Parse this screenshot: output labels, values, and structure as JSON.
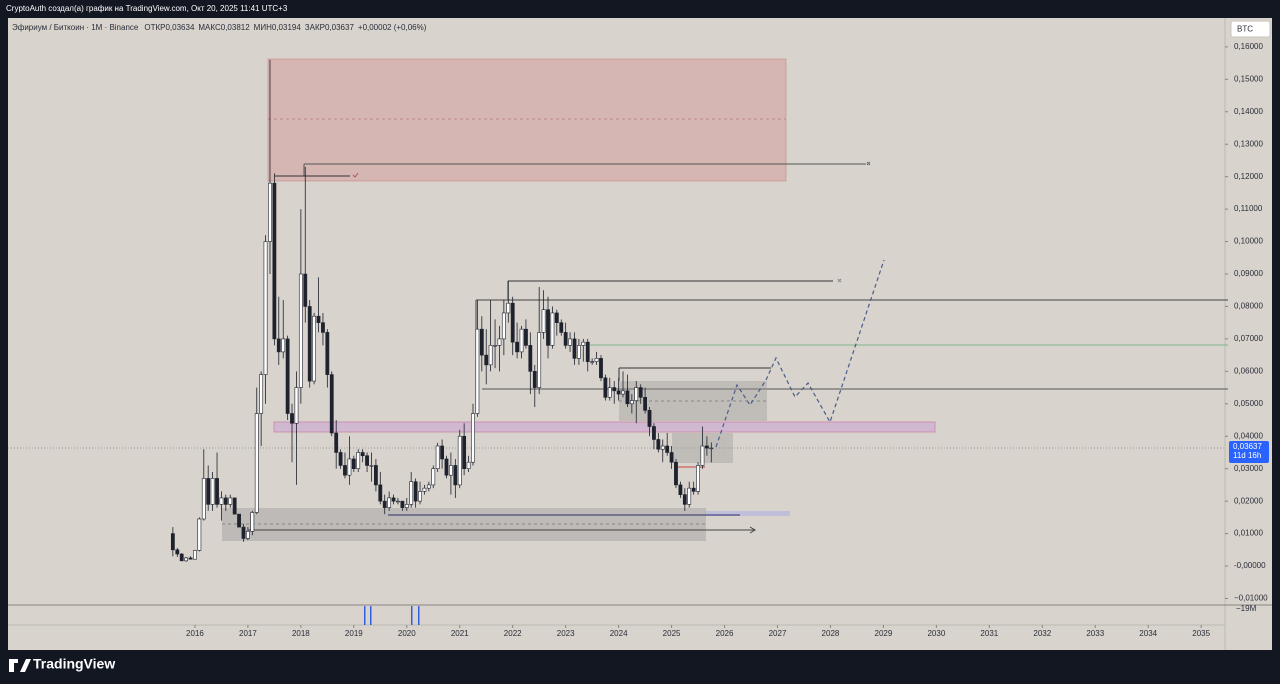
{
  "header": {
    "author_line": "CryptoAuth создал(а) график на TradingView.com, Окт 20, 2025 11:41 UTC+3",
    "brand": "TradingView"
  },
  "chart_data": {
    "type": "candlestick",
    "title": "Эфириум / Биткоин · 1М · Binance",
    "ohlc": [
      {
        "label": "ОТКР",
        "value": "0,03634"
      },
      {
        "label": "МАКС",
        "value": "0,03812"
      },
      {
        "label": "МИН",
        "value": "0,03194"
      },
      {
        "label": "ЗАКР",
        "value": "0,03637"
      }
    ],
    "change": "+0,00002 (+0,06%)",
    "currency": "BTC",
    "last_price": {
      "value": 0.03637,
      "label": "0,03637"
    },
    "countdown": "11d 16h",
    "volume_label": "−19M",
    "x": [
      2015.583,
      2015.667,
      2015.75,
      2015.833,
      2015.917,
      2016,
      2016.083,
      2016.167,
      2016.25,
      2016.333,
      2016.417,
      2016.5,
      2016.583,
      2016.667,
      2016.75,
      2016.833,
      2016.917,
      2017,
      2017.083,
      2017.167,
      2017.25,
      2017.333,
      2017.417,
      2017.5,
      2017.583,
      2017.667,
      2017.75,
      2017.833,
      2017.917,
      2018,
      2018.083,
      2018.167,
      2018.25,
      2018.333,
      2018.417,
      2018.5,
      2018.583,
      2018.667,
      2018.75,
      2018.833,
      2018.917,
      2019,
      2019.083,
      2019.167,
      2019.25,
      2019.333,
      2019.417,
      2019.5,
      2019.583,
      2019.667,
      2019.75,
      2019.833,
      2019.917,
      2020,
      2020.083,
      2020.167,
      2020.25,
      2020.333,
      2020.417,
      2020.5,
      2020.583,
      2020.667,
      2020.75,
      2020.833,
      2020.917,
      2021,
      2021.083,
      2021.167,
      2021.25,
      2021.333,
      2021.417,
      2021.5,
      2021.583,
      2021.667,
      2021.75,
      2021.833,
      2021.917,
      2022,
      2022.083,
      2022.167,
      2022.25,
      2022.333,
      2022.417,
      2022.5,
      2022.583,
      2022.667,
      2022.75,
      2022.833,
      2022.917,
      2023,
      2023.083,
      2023.167,
      2023.25,
      2023.333,
      2023.417,
      2023.5,
      2023.583,
      2023.667,
      2023.75,
      2023.833,
      2023.917,
      2024,
      2024.083,
      2024.167,
      2024.25,
      2024.333,
      2024.417,
      2024.5,
      2024.583,
      2024.667,
      2024.75,
      2024.833,
      2024.917,
      2025,
      2025.083,
      2025.167,
      2025.25,
      2025.333,
      2025.417,
      2025.5,
      2025.583,
      2025.667,
      2025.75
    ],
    "open": [
      0.01,
      0.005,
      0.0037,
      0.0016,
      0.0025,
      0.0021,
      0.0048,
      0.0145,
      0.027,
      0.019,
      0.027,
      0.019,
      0.021,
      0.019,
      0.021,
      0.016,
      0.012,
      0.0085,
      0.0107,
      0.0165,
      0.047,
      0.059,
      0.1,
      0.118,
      0.07,
      0.066,
      0.07,
      0.047,
      0.044,
      0.055,
      0.09,
      0.08,
      0.057,
      0.077,
      0.075,
      0.072,
      0.059,
      0.041,
      0.035,
      0.031,
      0.028,
      0.033,
      0.03,
      0.035,
      0.034,
      0.031,
      0.031,
      0.025,
      0.02,
      0.018,
      0.021,
      0.02,
      0.02,
      0.018,
      0.019,
      0.026,
      0.02,
      0.023,
      0.024,
      0.025,
      0.03,
      0.037,
      0.033,
      0.028,
      0.031,
      0.025,
      0.04,
      0.03,
      0.032,
      0.047,
      0.073,
      0.065,
      0.062,
      0.068,
      0.068,
      0.07,
      0.078,
      0.081,
      0.069,
      0.066,
      0.073,
      0.068,
      0.06,
      0.055,
      0.072,
      0.079,
      0.068,
      0.078,
      0.075,
      0.072,
      0.068,
      0.07,
      0.064,
      0.068,
      0.069,
      0.063,
      0.063,
      0.064,
      0.058,
      0.052,
      0.055,
      0.054,
      0.053,
      0.054,
      0.05,
      0.051,
      0.055,
      0.052,
      0.048,
      0.043,
      0.039,
      0.036,
      0.037,
      0.035,
      0.032,
      0.025,
      0.022,
      0.019,
      0.024,
      0.023,
      0.031,
      0.037,
      0.03634
    ],
    "high": [
      0.012,
      0.0056,
      0.004,
      0.0028,
      0.003,
      0.005,
      0.015,
      0.036,
      0.031,
      0.029,
      0.035,
      0.023,
      0.022,
      0.022,
      0.021,
      0.016,
      0.013,
      0.012,
      0.017,
      0.055,
      0.06,
      0.102,
      0.156,
      0.121,
      0.083,
      0.082,
      0.071,
      0.05,
      0.06,
      0.11,
      0.123,
      0.082,
      0.078,
      0.089,
      0.078,
      0.073,
      0.06,
      0.045,
      0.036,
      0.035,
      0.04,
      0.034,
      0.036,
      0.036,
      0.035,
      0.035,
      0.033,
      0.029,
      0.022,
      0.023,
      0.022,
      0.021,
      0.02,
      0.021,
      0.029,
      0.027,
      0.026,
      0.025,
      0.026,
      0.031,
      0.038,
      0.039,
      0.034,
      0.035,
      0.033,
      0.042,
      0.044,
      0.034,
      0.05,
      0.082,
      0.077,
      0.073,
      0.082,
      0.076,
      0.074,
      0.082,
      0.088,
      0.083,
      0.075,
      0.074,
      0.076,
      0.072,
      0.062,
      0.086,
      0.085,
      0.083,
      0.08,
      0.079,
      0.076,
      0.075,
      0.072,
      0.072,
      0.07,
      0.07,
      0.07,
      0.064,
      0.066,
      0.065,
      0.059,
      0.058,
      0.057,
      0.058,
      0.06,
      0.059,
      0.053,
      0.057,
      0.056,
      0.055,
      0.049,
      0.044,
      0.041,
      0.039,
      0.041,
      0.037,
      0.033,
      0.026,
      0.024,
      0.026,
      0.026,
      0.032,
      0.043,
      0.04,
      0.03812
    ],
    "low": [
      0.003,
      0.0028,
      0.0015,
      0.0013,
      0.002,
      0.002,
      0.0045,
      0.014,
      0.017,
      0.017,
      0.018,
      0.014,
      0.017,
      0.018,
      0.016,
      0.012,
      0.0075,
      0.008,
      0.0095,
      0.016,
      0.037,
      0.05,
      0.09,
      0.068,
      0.062,
      0.064,
      0.045,
      0.032,
      0.025,
      0.05,
      0.075,
      0.055,
      0.056,
      0.072,
      0.068,
      0.055,
      0.04,
      0.03,
      0.03,
      0.027,
      0.025,
      0.029,
      0.029,
      0.032,
      0.029,
      0.026,
      0.023,
      0.019,
      0.016,
      0.017,
      0.019,
      0.019,
      0.017,
      0.017,
      0.018,
      0.018,
      0.019,
      0.022,
      0.023,
      0.024,
      0.029,
      0.03,
      0.027,
      0.022,
      0.021,
      0.024,
      0.028,
      0.029,
      0.031,
      0.046,
      0.06,
      0.056,
      0.06,
      0.061,
      0.06,
      0.065,
      0.075,
      0.065,
      0.064,
      0.064,
      0.067,
      0.053,
      0.049,
      0.053,
      0.07,
      0.064,
      0.067,
      0.071,
      0.071,
      0.067,
      0.066,
      0.062,
      0.062,
      0.063,
      0.06,
      0.062,
      0.062,
      0.057,
      0.051,
      0.051,
      0.05,
      0.051,
      0.052,
      0.049,
      0.047,
      0.044,
      0.05,
      0.047,
      0.04,
      0.036,
      0.035,
      0.032,
      0.034,
      0.03,
      0.024,
      0.021,
      0.017,
      0.018,
      0.022,
      0.022,
      0.03,
      0.034,
      0.03194
    ],
    "close": [
      0.005,
      0.0037,
      0.0016,
      0.0025,
      0.0021,
      0.0048,
      0.0145,
      0.027,
      0.019,
      0.027,
      0.019,
      0.021,
      0.019,
      0.021,
      0.016,
      0.012,
      0.0085,
      0.0107,
      0.0165,
      0.047,
      0.059,
      0.1,
      0.118,
      0.07,
      0.066,
      0.07,
      0.047,
      0.044,
      0.055,
      0.09,
      0.08,
      0.057,
      0.077,
      0.075,
      0.072,
      0.059,
      0.041,
      0.035,
      0.031,
      0.028,
      0.033,
      0.03,
      0.035,
      0.034,
      0.031,
      0.031,
      0.025,
      0.02,
      0.018,
      0.021,
      0.02,
      0.02,
      0.018,
      0.019,
      0.026,
      0.02,
      0.023,
      0.024,
      0.025,
      0.03,
      0.037,
      0.033,
      0.028,
      0.031,
      0.025,
      0.04,
      0.03,
      0.032,
      0.047,
      0.073,
      0.065,
      0.062,
      0.068,
      0.068,
      0.07,
      0.078,
      0.081,
      0.069,
      0.066,
      0.073,
      0.068,
      0.06,
      0.055,
      0.072,
      0.079,
      0.068,
      0.078,
      0.075,
      0.072,
      0.068,
      0.07,
      0.064,
      0.068,
      0.069,
      0.063,
      0.063,
      0.064,
      0.058,
      0.052,
      0.055,
      0.054,
      0.053,
      0.054,
      0.05,
      0.051,
      0.055,
      0.052,
      0.048,
      0.043,
      0.039,
      0.036,
      0.037,
      0.035,
      0.032,
      0.025,
      0.022,
      0.019,
      0.024,
      0.023,
      0.031,
      0.037,
      0.03634,
      0.03637
    ],
    "xlim": [
      2012.47,
      2035.45
    ],
    "xticks": [
      2016,
      2017,
      2018,
      2019,
      2020,
      2021,
      2022,
      2023,
      2024,
      2025,
      2026,
      2027,
      2028,
      2029,
      2030,
      2031,
      2032,
      2033,
      2034,
      2035
    ],
    "ylim": [
      -0.0117,
      0.1689
    ],
    "yticks": [
      {
        "value": 0.16,
        "label": "0,16000"
      },
      {
        "value": 0.15,
        "label": "0,15000"
      },
      {
        "value": 0.14,
        "label": "0,14000"
      },
      {
        "value": 0.13,
        "label": "0,13000"
      },
      {
        "value": 0.12,
        "label": "0,12000"
      },
      {
        "value": 0.11,
        "label": "0,11000"
      },
      {
        "value": 0.1,
        "label": "0,10000"
      },
      {
        "value": 0.09,
        "label": "0,09000"
      },
      {
        "value": 0.08,
        "label": "0,08000"
      },
      {
        "value": 0.07,
        "label": "0,07000"
      },
      {
        "value": 0.06,
        "label": "0,06000"
      },
      {
        "value": 0.05,
        "label": "0,05000"
      },
      {
        "value": 0.04,
        "label": "0,04000"
      },
      {
        "value": 0.03,
        "label": "0,03000"
      },
      {
        "value": 0.02,
        "label": "0,02000"
      },
      {
        "value": 0.01,
        "label": "0,01000"
      },
      {
        "value": 0,
        "label": "-0,00000"
      },
      {
        "value": -0.01,
        "label": "−0,01000"
      }
    ],
    "grid": false,
    "up_color": "#ffffff",
    "down_color": "#1e222d",
    "wick_color": "#1e222d"
  }
}
